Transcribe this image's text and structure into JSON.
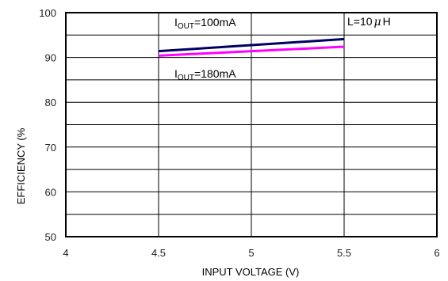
{
  "chart_data": {
    "type": "line",
    "title": "",
    "xlabel": "INPUT VOLTAGE (V)",
    "ylabel": "EFFICIENCY (%",
    "xlim": [
      4,
      6
    ],
    "ylim": [
      50,
      100
    ],
    "x_ticks": [
      "4",
      "4.5",
      "5",
      "5.5",
      "6"
    ],
    "y_ticks": [
      "50",
      "60",
      "70",
      "80",
      "90",
      "100"
    ],
    "grid": true,
    "series": [
      {
        "name": "I_OUT=100mA",
        "color": "#000066",
        "x": [
          4.5,
          5.5
        ],
        "y": [
          91.4,
          94.1
        ]
      },
      {
        "name": "I_OUT=180mA",
        "color": "#ff00ff",
        "x": [
          4.5,
          5.5
        ],
        "y": [
          90.4,
          92.4
        ]
      }
    ],
    "annotations": {
      "iout_100": {
        "main": "I",
        "sub": "OUT",
        "rest": "=100mA"
      },
      "iout_180": {
        "main": "I",
        "sub": "OUT",
        "rest": "=180mA"
      },
      "inductor": {
        "prefix": "L=10",
        "mu": "μ",
        "suffix": "H"
      }
    }
  }
}
